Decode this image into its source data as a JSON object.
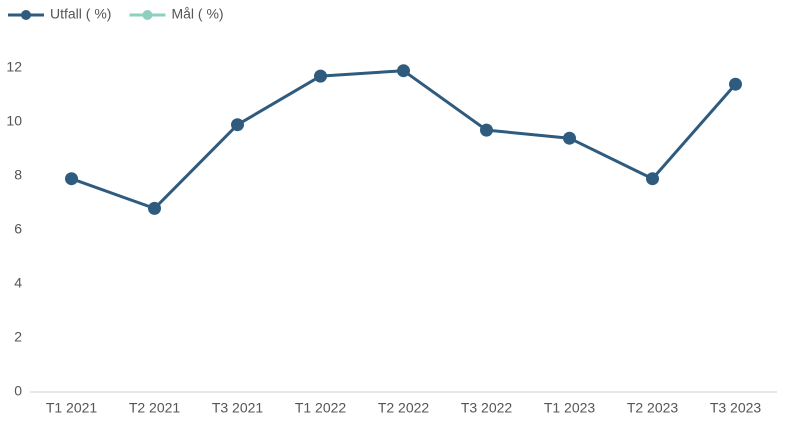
{
  "chart_data": {
    "type": "line",
    "categories": [
      "T1 2021",
      "T2 2021",
      "T3 2021",
      "T1 2022",
      "T2 2022",
      "T3 2022",
      "T1 2023",
      "T2 2023",
      "T3 2023"
    ],
    "series": [
      {
        "name": "Utfall ( %)",
        "color": "#2e5b7e",
        "values": [
          7.9,
          6.8,
          9.9,
          11.7,
          11.9,
          9.7,
          9.4,
          7.9,
          11.4
        ]
      },
      {
        "name": "Mål ( %)",
        "color": "#8ecfc0",
        "values": [
          null,
          null,
          null,
          null,
          null,
          null,
          null,
          null,
          null
        ]
      }
    ],
    "ylim": [
      0,
      12
    ],
    "yticks": [
      0,
      2,
      4,
      6,
      8,
      10,
      12
    ],
    "grid": false
  }
}
